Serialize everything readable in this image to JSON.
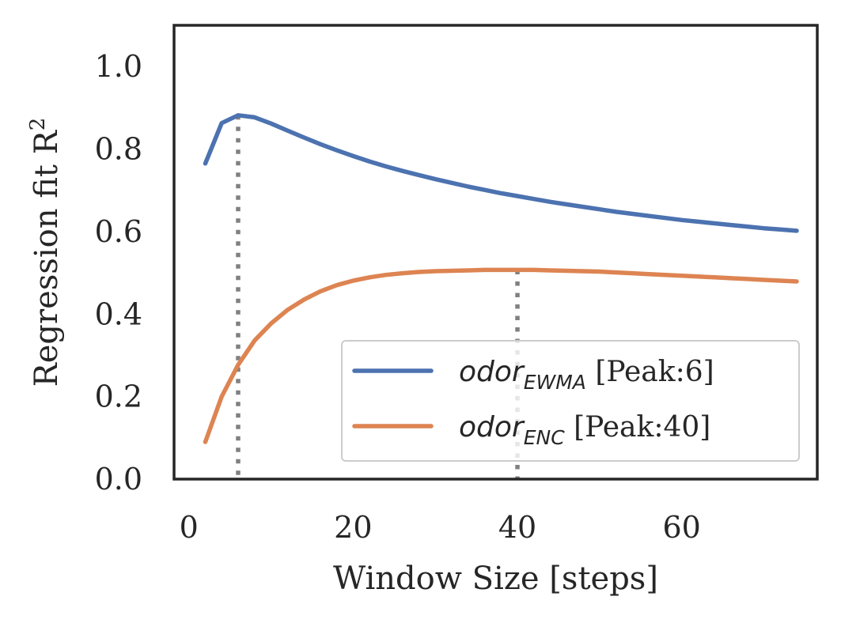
{
  "chart_data": {
    "type": "line",
    "xlabel": "Window Size [steps]",
    "ylabel": "Regression fit R",
    "ylabel_superscript": "2",
    "xlim": [
      -1.8,
      76.5
    ],
    "ylim": [
      0.0,
      1.1
    ],
    "xticks": [
      0,
      20,
      40,
      60
    ],
    "xtick_labels": [
      "0",
      "20",
      "40",
      "60"
    ],
    "yticks": [
      0.0,
      0.2,
      0.4,
      0.6,
      0.8,
      1.0
    ],
    "ytick_labels": [
      "0.0",
      "0.2",
      "0.4",
      "0.6",
      "0.8",
      "1.0"
    ],
    "grid": false,
    "legend_position": "bottom-right",
    "series": [
      {
        "name": "odor_EWMA",
        "label_base": "odor",
        "label_sub": "EWMA",
        "label_suffix": " [Peak:6]",
        "color": "#4c72b0",
        "peak_x": 6,
        "x": [
          2,
          4,
          6,
          8,
          10,
          12,
          14,
          16,
          18,
          20,
          22,
          24,
          26,
          28,
          30,
          32,
          34,
          36,
          38,
          40,
          42,
          44,
          46,
          48,
          50,
          52,
          54,
          56,
          58,
          60,
          62,
          64,
          66,
          68,
          70,
          72,
          74
        ],
        "y": [
          0.765,
          0.863,
          0.882,
          0.877,
          0.862,
          0.845,
          0.828,
          0.812,
          0.797,
          0.783,
          0.77,
          0.758,
          0.747,
          0.737,
          0.727,
          0.718,
          0.709,
          0.701,
          0.693,
          0.686,
          0.679,
          0.672,
          0.666,
          0.66,
          0.654,
          0.648,
          0.643,
          0.638,
          0.633,
          0.628,
          0.624,
          0.62,
          0.616,
          0.612,
          0.608,
          0.605,
          0.602
        ]
      },
      {
        "name": "odor_ENC",
        "label_base": "odor",
        "label_sub": "ENC",
        "label_suffix": " [Peak:40]",
        "color": "#dd8452",
        "peak_x": 40,
        "x": [
          2,
          4,
          6,
          8,
          10,
          12,
          14,
          16,
          18,
          20,
          22,
          24,
          26,
          28,
          30,
          32,
          34,
          36,
          38,
          40,
          42,
          44,
          46,
          48,
          50,
          52,
          54,
          56,
          58,
          60,
          62,
          64,
          66,
          68,
          70,
          72,
          74
        ],
        "y": [
          0.09,
          0.2,
          0.277,
          0.336,
          0.377,
          0.41,
          0.435,
          0.455,
          0.47,
          0.481,
          0.489,
          0.495,
          0.499,
          0.502,
          0.504,
          0.505,
          0.506,
          0.507,
          0.507,
          0.507,
          0.507,
          0.506,
          0.505,
          0.504,
          0.503,
          0.501,
          0.499,
          0.497,
          0.495,
          0.493,
          0.491,
          0.489,
          0.487,
          0.485,
          0.483,
          0.481,
          0.479
        ]
      }
    ],
    "peak_markers": [
      {
        "x": 6,
        "y": 0.882,
        "color": "#808080",
        "style": "dotted"
      },
      {
        "x": 40,
        "y": 0.507,
        "color": "#808080",
        "style": "dotted"
      }
    ]
  }
}
